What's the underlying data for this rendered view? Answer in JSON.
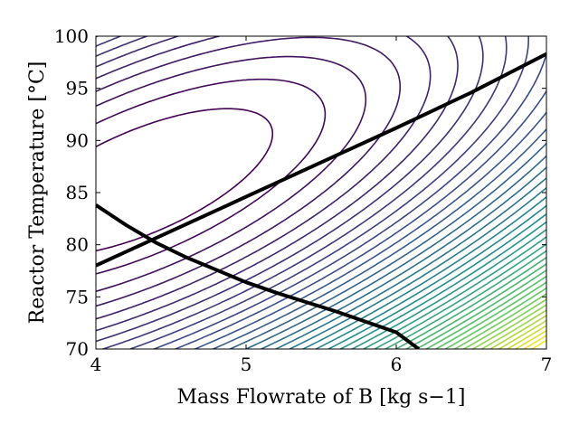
{
  "chart_data": {
    "type": "contour",
    "title": "",
    "xlabel": "Mass Flowrate of B [kg s−1]",
    "ylabel": "Reactor Temperature [°C]",
    "xlim": [
      4,
      7
    ],
    "ylim": [
      70,
      100
    ],
    "x_ticks": [
      "4",
      "5",
      "6",
      "7"
    ],
    "y_ticks": [
      "70",
      "75",
      "80",
      "85",
      "90",
      "95",
      "100"
    ],
    "grid": false,
    "legend": "none",
    "colormap": [
      "#440154",
      "#3b528b",
      "#21918c",
      "#5ec962",
      "#fde725"
    ],
    "contour_optimum": {
      "x": 4.3,
      "y": 86
    },
    "contour_levels": 42,
    "constraint_lines": [
      {
        "color": "#000000",
        "points": [
          [
            4.0,
            78.0
          ],
          [
            4.5,
            81.3
          ],
          [
            5.0,
            84.6
          ],
          [
            5.5,
            87.9
          ],
          [
            6.0,
            91.2
          ],
          [
            6.5,
            94.6
          ],
          [
            7.0,
            98.3
          ]
        ]
      },
      {
        "color": "#000000",
        "points": [
          [
            4.0,
            83.8
          ],
          [
            4.2,
            81.9
          ],
          [
            4.4,
            80.2
          ],
          [
            4.6,
            78.8
          ],
          [
            4.8,
            77.6
          ],
          [
            5.0,
            76.4
          ],
          [
            5.2,
            75.4
          ],
          [
            5.4,
            74.5
          ],
          [
            5.6,
            73.6
          ],
          [
            5.8,
            72.6
          ],
          [
            6.0,
            71.6
          ],
          [
            6.15,
            70.0
          ]
        ]
      }
    ]
  }
}
